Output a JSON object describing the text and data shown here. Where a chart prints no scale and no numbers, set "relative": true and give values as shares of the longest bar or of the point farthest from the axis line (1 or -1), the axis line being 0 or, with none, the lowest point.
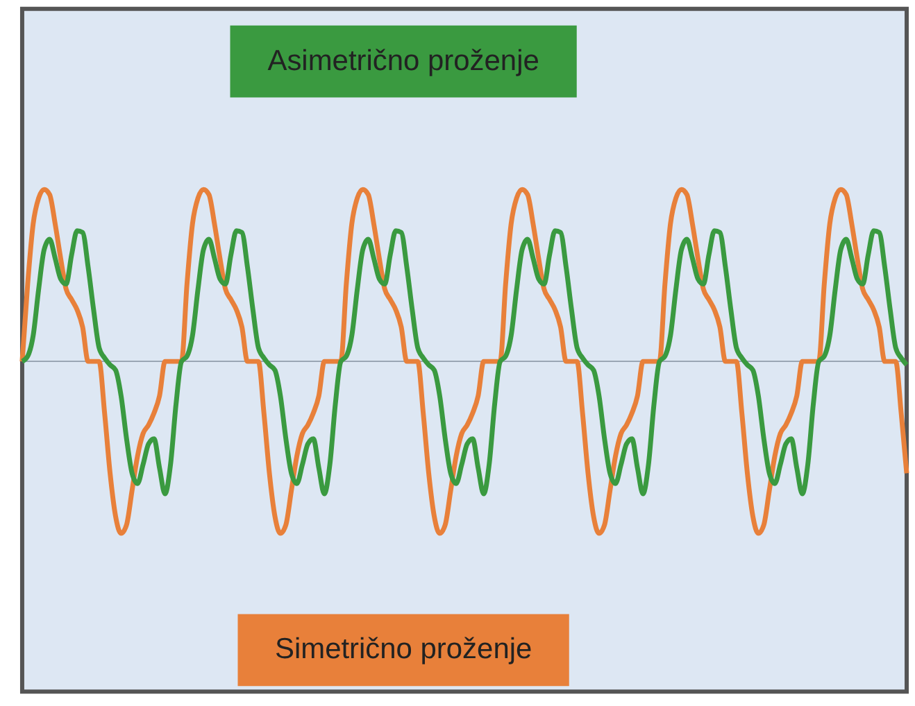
{
  "chart_data": {
    "type": "line",
    "relative": true,
    "categories": [
      null,
      null,
      null,
      null,
      null,
      null,
      null,
      null,
      null,
      null,
      null,
      null,
      null,
      null,
      null,
      null,
      null,
      null,
      null,
      null,
      null,
      null,
      null,
      null,
      null,
      null,
      null,
      null,
      null,
      null,
      null,
      null,
      null,
      null,
      null,
      null,
      null,
      null,
      null,
      null,
      null,
      null,
      null,
      null,
      null,
      null,
      null,
      null,
      null,
      null,
      null,
      null,
      null,
      null,
      null,
      null,
      null,
      null,
      null,
      null,
      null,
      null,
      null,
      null,
      null,
      null,
      null,
      null,
      null,
      null,
      null,
      null,
      null,
      null,
      null,
      null,
      null,
      null,
      null,
      null,
      null,
      null,
      null,
      null,
      null,
      null,
      null,
      null,
      null,
      null,
      null,
      null,
      null,
      null,
      null,
      null,
      null,
      null,
      null,
      null,
      null,
      null,
      null,
      null,
      null,
      null,
      null,
      null,
      null,
      null,
      null,
      null,
      null,
      null,
      null,
      null,
      null,
      null,
      null,
      null,
      null,
      null,
      null,
      null,
      null,
      null,
      null,
      null,
      null,
      null,
      null,
      null,
      null,
      null,
      null,
      null,
      null,
      null,
      null,
      null,
      null,
      null,
      null,
      null,
      null,
      null,
      null,
      null,
      null,
      null,
      null,
      null,
      null,
      null,
      null,
      null,
      null,
      null,
      null,
      null,
      null,
      null
    ],
    "series": [
      {
        "name": "Simetrično proženje",
        "color": "#e8803a",
        "values": [
          0,
          0.45,
          0.8,
          0.95,
          1,
          0.97,
          0.8,
          0.6,
          0.42,
          0.36,
          0.3,
          0.2,
          0,
          0,
          0,
          -0.3,
          -0.65,
          -0.9,
          -1,
          -0.95,
          -0.75,
          -0.55,
          -0.42,
          -0.37,
          -0.3,
          -0.2,
          0,
          0,
          0,
          0,
          0.45,
          0.8,
          0.95,
          1,
          0.97,
          0.8,
          0.6,
          0.42,
          0.36,
          0.3,
          0.2,
          0,
          0,
          0,
          -0.3,
          -0.65,
          -0.9,
          -1,
          -0.95,
          -0.75,
          -0.55,
          -0.42,
          -0.37,
          -0.3,
          -0.2,
          0,
          0,
          0,
          0,
          0.45,
          0.8,
          0.95,
          1,
          0.97,
          0.8,
          0.6,
          0.42,
          0.36,
          0.3,
          0.2,
          0,
          0,
          0,
          -0.3,
          -0.65,
          -0.9,
          -1,
          -0.95,
          -0.75,
          -0.55,
          -0.42,
          -0.37,
          -0.3,
          -0.2,
          0,
          0,
          0,
          0,
          0.45,
          0.8,
          0.95,
          1,
          0.97,
          0.8,
          0.6,
          0.42,
          0.36,
          0.3,
          0.2,
          0,
          0,
          0,
          -0.3,
          -0.65,
          -0.9,
          -1,
          -0.95,
          -0.75,
          -0.55,
          -0.42,
          -0.37,
          -0.3,
          -0.2,
          0,
          0,
          0,
          0,
          0.45,
          0.8,
          0.95,
          1,
          0.97,
          0.8,
          0.6,
          0.42,
          0.36,
          0.3,
          0.2,
          0,
          0,
          0,
          -0.3,
          -0.65,
          -0.9,
          -1,
          -0.95,
          -0.75,
          -0.55,
          -0.42,
          -0.37,
          -0.3,
          -0.2,
          0,
          0,
          0,
          0,
          0.45,
          0.8,
          0.95,
          1,
          0.97,
          0.8,
          0.6,
          0.42,
          0.36,
          0.3,
          0.2,
          0,
          0,
          0,
          -0.3,
          -0.65
        ]
      },
      {
        "name": "Asimetrično proženje",
        "color": "#3a9a40",
        "values": [
          0,
          0.03,
          0.15,
          0.42,
          0.65,
          0.71,
          0.6,
          0.48,
          0.45,
          0.62,
          0.76,
          0.75,
          0.55,
          0.3,
          0.08,
          0.02,
          -0.02,
          -0.05,
          -0.2,
          -0.45,
          -0.65,
          -0.71,
          -0.6,
          -0.48,
          -0.45,
          -0.62,
          -0.77,
          -0.6,
          -0.25,
          0,
          0.03,
          0.15,
          0.42,
          0.65,
          0.71,
          0.6,
          0.48,
          0.45,
          0.62,
          0.76,
          0.75,
          0.55,
          0.3,
          0.08,
          0.02,
          -0.02,
          -0.05,
          -0.2,
          -0.45,
          -0.65,
          -0.71,
          -0.6,
          -0.48,
          -0.45,
          -0.62,
          -0.77,
          -0.6,
          -0.25,
          0,
          0.03,
          0.15,
          0.42,
          0.65,
          0.71,
          0.6,
          0.48,
          0.45,
          0.62,
          0.76,
          0.75,
          0.55,
          0.3,
          0.08,
          0.02,
          -0.02,
          -0.05,
          -0.2,
          -0.45,
          -0.65,
          -0.71,
          -0.6,
          -0.48,
          -0.45,
          -0.62,
          -0.77,
          -0.6,
          -0.25,
          0,
          0.03,
          0.15,
          0.42,
          0.65,
          0.71,
          0.6,
          0.48,
          0.45,
          0.62,
          0.76,
          0.75,
          0.55,
          0.3,
          0.08,
          0.02,
          -0.02,
          -0.05,
          -0.2,
          -0.45,
          -0.65,
          -0.71,
          -0.6,
          -0.48,
          -0.45,
          -0.62,
          -0.77,
          -0.6,
          -0.25,
          0,
          0.03,
          0.15,
          0.42,
          0.65,
          0.71,
          0.6,
          0.48,
          0.45,
          0.62,
          0.76,
          0.75,
          0.55,
          0.3,
          0.08,
          0.02,
          -0.02,
          -0.05,
          -0.2,
          -0.45,
          -0.65,
          -0.71,
          -0.6,
          -0.48,
          -0.45,
          -0.62,
          -0.77,
          -0.6,
          -0.25,
          0,
          0.03,
          0.15,
          0.42,
          0.65,
          0.71,
          0.6,
          0.48,
          0.45,
          0.62,
          0.76,
          0.75,
          0.55,
          0.3,
          0.08,
          0.02,
          -0.02
        ]
      }
    ]
  }
}
